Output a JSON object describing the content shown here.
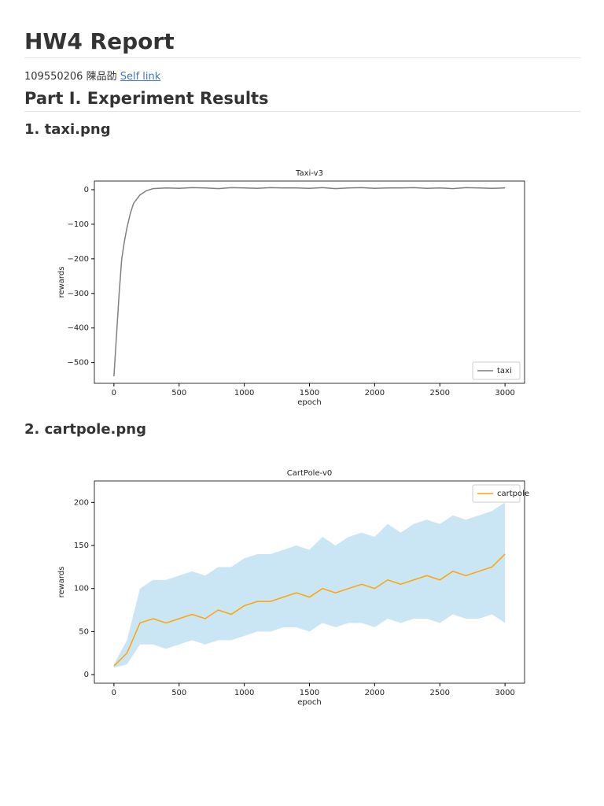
{
  "document": {
    "title": "HW4 Report",
    "author": "109550206 陳品劭",
    "link": "Self link",
    "section": "Part I. Experiment Results",
    "headings": [
      "1. taxi.png",
      "2. cartpole.png"
    ]
  },
  "chart_data": [
    {
      "type": "line",
      "title": "Taxi-v3",
      "x_label": "epoch",
      "y_label": "rewards",
      "x": [
        0,
        20,
        40,
        60,
        80,
        100,
        125,
        150,
        200,
        250,
        300,
        400,
        500,
        600,
        700,
        800,
        900,
        1000,
        1100,
        1200,
        1300,
        1400,
        1500,
        1600,
        1700,
        1800,
        1900,
        2000,
        2100,
        2200,
        2300,
        2400,
        2500,
        2600,
        2700,
        2800,
        2900,
        3000
      ],
      "series": [
        {
          "name": "taxi",
          "color": "#808080",
          "values": [
            -540,
            -420,
            -300,
            -200,
            -150,
            -110,
            -70,
            -40,
            -15,
            -3,
            3,
            5,
            4,
            6,
            5,
            3,
            6,
            5,
            4,
            6,
            5,
            5,
            4,
            6,
            3,
            5,
            6,
            4,
            5,
            5,
            6,
            4,
            5,
            3,
            6,
            5,
            4,
            5
          ]
        }
      ],
      "xlim": [
        -150,
        3150
      ],
      "xticks": [
        0,
        500,
        1000,
        1500,
        2000,
        2500,
        3000
      ],
      "ylim": [
        -560,
        25
      ],
      "yticks": [
        0,
        {
          "value": -100,
          "label": "−100"
        },
        {
          "value": -200,
          "label": "−200"
        },
        {
          "value": -300,
          "label": "−300"
        },
        {
          "value": -400,
          "label": "−400"
        },
        {
          "value": -500,
          "label": "−500"
        }
      ],
      "legend": "lower right"
    },
    {
      "type": "line",
      "title": "CartPole-v0",
      "x_label": "epoch",
      "y_label": "rewards",
      "x": [
        0,
        100,
        200,
        300,
        400,
        500,
        600,
        700,
        800,
        900,
        1000,
        1100,
        1200,
        1300,
        1400,
        1500,
        1600,
        1700,
        1800,
        1900,
        2000,
        2100,
        2200,
        2300,
        2400,
        2500,
        2600,
        2700,
        2800,
        2900,
        3000
      ],
      "series": [
        {
          "name": "cartpole",
          "color": "#ffa500",
          "values": [
            10,
            25,
            60,
            65,
            60,
            65,
            70,
            65,
            75,
            70,
            80,
            85,
            85,
            90,
            95,
            90,
            100,
            95,
            100,
            105,
            100,
            110,
            105,
            110,
            115,
            110,
            120,
            115,
            120,
            125,
            140
          ]
        }
      ],
      "band": {
        "color": "#a6d4ec",
        "lower": [
          8,
          12,
          35,
          35,
          30,
          35,
          40,
          35,
          40,
          40,
          45,
          50,
          50,
          55,
          55,
          50,
          60,
          55,
          60,
          60,
          55,
          65,
          60,
          65,
          65,
          60,
          70,
          65,
          65,
          70,
          60
        ],
        "upper": [
          12,
          40,
          100,
          110,
          110,
          115,
          120,
          115,
          125,
          125,
          135,
          140,
          140,
          145,
          150,
          145,
          160,
          150,
          160,
          165,
          160,
          175,
          165,
          175,
          180,
          175,
          185,
          180,
          185,
          190,
          200
        ]
      },
      "xlim": [
        -150,
        3150
      ],
      "xticks": [
        0,
        500,
        1000,
        1500,
        2000,
        2500,
        3000
      ],
      "ylim": [
        -10,
        225
      ],
      "yticks": [
        0,
        50,
        100,
        150,
        200
      ],
      "legend": "upper right"
    }
  ]
}
